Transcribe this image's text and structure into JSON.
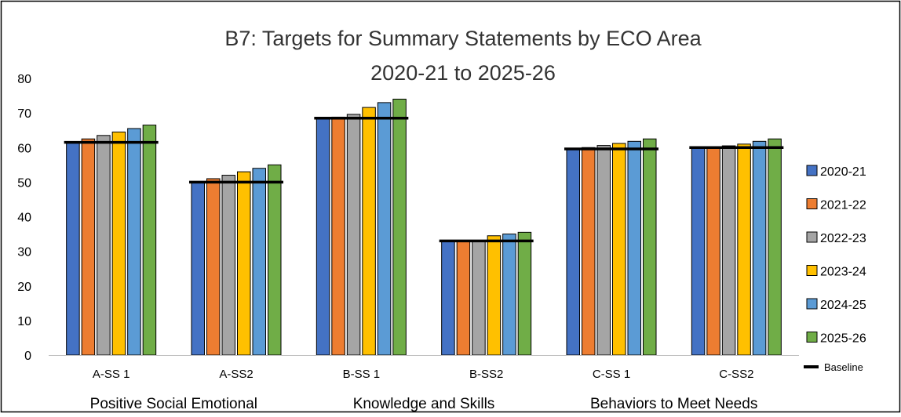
{
  "chart_data": {
    "type": "bar",
    "title": "B7: Targets for Summary Statements by ECO Area",
    "subtitle": "2020-21 to 2025-26",
    "categories": [
      "A-SS 1",
      "A-SS2",
      "B-SS 1",
      "B-SS2",
      "C-SS 1",
      "C-SS2"
    ],
    "groups": [
      {
        "label": "Positive Social Emotional",
        "categories": [
          "A-SS 1",
          "A-SS2"
        ]
      },
      {
        "label": "Knowledge and Skills",
        "categories": [
          "B-SS 1",
          "B-SS2"
        ]
      },
      {
        "label": "Behaviors to Meet Needs",
        "categories": [
          "C-SS 1",
          "C-SS2"
        ]
      }
    ],
    "ylim": [
      0,
      80
    ],
    "yticks": [
      0,
      10,
      20,
      30,
      40,
      50,
      60,
      70,
      80
    ],
    "grid": false,
    "legend_position": "right",
    "series": [
      {
        "name": "2020-21",
        "color": "#4472C4",
        "values": [
          61.5,
          50.0,
          68.5,
          33.0,
          59.6,
          60.0
        ]
      },
      {
        "name": "2021-22",
        "color": "#ED7D31",
        "values": [
          62.5,
          51.0,
          68.8,
          33.0,
          60.0,
          60.2
        ]
      },
      {
        "name": "2022-23",
        "color": "#A5A5A5",
        "values": [
          63.5,
          52.0,
          69.6,
          33.2,
          60.6,
          60.5
        ]
      },
      {
        "name": "2023-24",
        "color": "#FFC000",
        "values": [
          64.5,
          53.0,
          71.6,
          34.5,
          61.2,
          61.0
        ]
      },
      {
        "name": "2024-25",
        "color": "#5B9BD5",
        "values": [
          65.5,
          54.0,
          73.0,
          35.0,
          61.8,
          61.8
        ]
      },
      {
        "name": "2025-26",
        "color": "#70AD47",
        "values": [
          66.5,
          55.0,
          74.0,
          35.5,
          62.5,
          62.5
        ]
      }
    ],
    "baseline": {
      "name": "Baseline",
      "color": "#000000",
      "values": [
        61.5,
        50.0,
        68.5,
        33.0,
        59.6,
        60.0
      ]
    }
  }
}
